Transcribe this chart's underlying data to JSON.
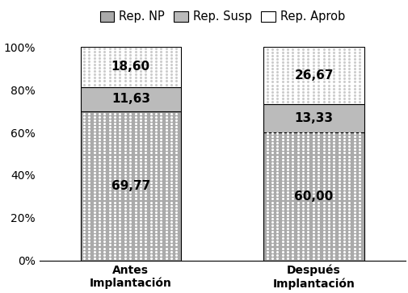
{
  "categories": [
    "Antes\nImplantación",
    "Después\nImplantación"
  ],
  "rep_np": [
    69.77,
    60.0
  ],
  "rep_susp": [
    11.63,
    13.33
  ],
  "rep_aprob": [
    18.6,
    26.67
  ],
  "color_rep_np": "#aaaaaa",
  "color_rep_susp": "#bbbbbb",
  "color_rep_aprob": "#ffffff",
  "legend_labels": [
    "Rep. NP",
    "Rep. Susp",
    "Rep. Aprob"
  ],
  "ylim": [
    0,
    100
  ],
  "yticks": [
    0,
    20,
    40,
    60,
    80,
    100
  ],
  "ytick_labels": [
    "0%",
    "20%",
    "40%",
    "60%",
    "80%",
    "100%"
  ],
  "bar_width": 0.55,
  "label_fontsize": 11,
  "tick_fontsize": 10,
  "legend_fontsize": 10.5
}
